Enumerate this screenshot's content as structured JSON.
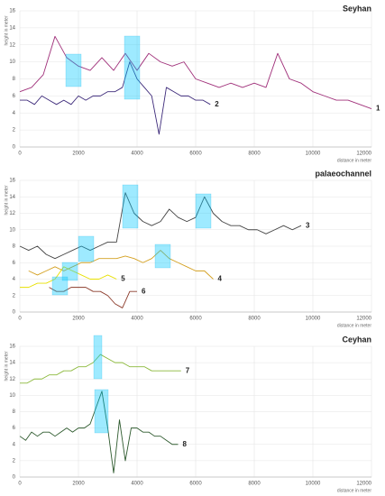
{
  "chart_data": [
    {
      "type": "line",
      "title": "Seyhan",
      "y_label": "height in meter",
      "x_label": "distance in meter",
      "xlim": [
        0,
        12000
      ],
      "xticks": [
        0,
        2000,
        4000,
        6000,
        8000,
        10000,
        12000
      ],
      "ylim": [
        0,
        16
      ],
      "yticks": [
        0,
        2,
        4,
        6,
        8,
        10,
        12,
        14,
        16
      ],
      "grid": true,
      "series": [
        {
          "name": "1",
          "color": "#a0307a",
          "x": [
            0,
            400,
            800,
            1200,
            1600,
            2000,
            2400,
            2800,
            3200,
            3600,
            4000,
            4400,
            4800,
            5200,
            5600,
            6000,
            6400,
            6800,
            7200,
            7600,
            8000,
            8400,
            8800,
            9200,
            9600,
            10000,
            10400,
            10800,
            11200,
            11600,
            12000
          ],
          "values": [
            6.5,
            7,
            8.5,
            13,
            10.5,
            9.5,
            9,
            10.5,
            9,
            11,
            9,
            11,
            10,
            9.5,
            10,
            8,
            7.5,
            7,
            7.5,
            7,
            7.5,
            7,
            11,
            8,
            7.5,
            6.5,
            6,
            5.5,
            5.5,
            5,
            4.5
          ]
        },
        {
          "name": "2",
          "color": "#3d2a7a",
          "x": [
            0,
            250,
            500,
            750,
            1000,
            1250,
            1500,
            1750,
            2000,
            2250,
            2500,
            2750,
            3000,
            3250,
            3500,
            3750,
            4000,
            4250,
            4500,
            4750,
            5000,
            5250,
            5500,
            5750,
            6000,
            6250,
            6500
          ],
          "values": [
            5.5,
            5.5,
            5,
            6,
            5.5,
            5,
            5.5,
            5,
            6,
            5.5,
            6,
            6,
            6.5,
            6.5,
            7,
            10,
            8,
            7,
            6,
            1.5,
            7,
            6.5,
            6,
            6,
            5.5,
            5.5,
            5
          ]
        }
      ]
    },
    {
      "type": "line",
      "title": "palaeochannel",
      "y_label": "height in meter",
      "x_label": "distance in meter",
      "xlim": [
        0,
        12000
      ],
      "xticks": [
        0,
        2000,
        4000,
        6000,
        8000,
        10000,
        12000
      ],
      "ylim": [
        0,
        16
      ],
      "yticks": [
        0,
        2,
        4,
        6,
        8,
        10,
        12,
        14,
        16
      ],
      "grid": true,
      "series": [
        {
          "name": "3",
          "color": "#444444",
          "x": [
            0,
            300,
            600,
            900,
            1200,
            1500,
            1800,
            2100,
            2400,
            2700,
            3000,
            3300,
            3600,
            3900,
            4200,
            4500,
            4800,
            5100,
            5400,
            5700,
            6000,
            6300,
            6600,
            6900,
            7200,
            7500,
            7800,
            8100,
            8400,
            8700,
            9000,
            9300,
            9600
          ],
          "values": [
            8,
            7.5,
            8,
            7,
            6.5,
            7,
            7.5,
            8,
            7.5,
            8,
            8.5,
            8.5,
            14.5,
            12,
            11,
            10.5,
            11,
            12.5,
            11.5,
            11,
            11.5,
            14,
            12,
            11,
            10.5,
            10.5,
            10,
            10,
            9.5,
            10,
            10.5,
            10,
            10.5
          ]
        },
        {
          "name": "4",
          "color": "#d4a020",
          "x": [
            300,
            600,
            900,
            1200,
            1500,
            1800,
            2100,
            2400,
            2700,
            3000,
            3300,
            3600,
            3900,
            4200,
            4500,
            4800,
            5100,
            5400,
            5700,
            6000,
            6300,
            6600
          ],
          "values": [
            5,
            4.5,
            5,
            5.5,
            5,
            5.5,
            6,
            6,
            6.5,
            6.5,
            6.5,
            6.8,
            6.5,
            6,
            6.5,
            7.5,
            6.5,
            6,
            5.5,
            5,
            5,
            4
          ]
        },
        {
          "name": "5",
          "color": "#e8e000",
          "x": [
            0,
            300,
            600,
            900,
            1200,
            1500,
            1800,
            2100,
            2400,
            2700,
            3000,
            3300
          ],
          "values": [
            3,
            3,
            3.5,
            3.5,
            4,
            5.5,
            5,
            4.5,
            4,
            4,
            4.5,
            4
          ]
        },
        {
          "name": "6",
          "color": "#8b3a2a",
          "x": [
            1000,
            1250,
            1500,
            1750,
            2000,
            2250,
            2500,
            2750,
            3000,
            3250,
            3500,
            3750,
            4000
          ],
          "values": [
            3,
            2.5,
            2.5,
            3,
            3,
            3,
            2.5,
            2.5,
            2,
            1,
            0.5,
            2.5,
            2.5
          ]
        }
      ]
    },
    {
      "type": "line",
      "title": "Ceyhan",
      "y_label": "height in meter",
      "x_label": "distance in meter",
      "xlim": [
        0,
        12000
      ],
      "xticks": [
        0,
        2000,
        4000,
        6000,
        8000,
        10000,
        12000
      ],
      "ylim": [
        0,
        16
      ],
      "yticks": [
        0,
        2,
        4,
        6,
        8,
        10,
        12,
        14,
        16
      ],
      "grid": true,
      "series": [
        {
          "name": "7",
          "color": "#8ab83a",
          "x": [
            0,
            250,
            500,
            750,
            1000,
            1250,
            1500,
            1750,
            2000,
            2250,
            2500,
            2750,
            3000,
            3250,
            3500,
            3750,
            4000,
            4250,
            4500,
            4750,
            5000,
            5250,
            5500
          ],
          "values": [
            11.5,
            11.5,
            12,
            12,
            12.5,
            12.5,
            13,
            13,
            13.5,
            13.5,
            14,
            15,
            14.5,
            14,
            14,
            13.5,
            13.5,
            13.5,
            13,
            13,
            13,
            13,
            13
          ]
        },
        {
          "name": "8",
          "color": "#2e5a2e",
          "x": [
            0,
            200,
            400,
            600,
            800,
            1000,
            1200,
            1400,
            1600,
            1800,
            2000,
            2200,
            2400,
            2600,
            2800,
            3000,
            3200,
            3400,
            3600,
            3800,
            4000,
            4200,
            4400,
            4600,
            4800,
            5000,
            5200,
            5400
          ],
          "values": [
            5,
            4.5,
            5.5,
            5,
            5.5,
            5.5,
            5,
            5.5,
            6,
            5.5,
            6,
            6,
            6.5,
            8.5,
            10.5,
            6,
            0.5,
            7,
            2,
            6,
            6,
            5.5,
            5.5,
            5,
            5,
            4.5,
            4,
            4
          ]
        }
      ]
    }
  ]
}
